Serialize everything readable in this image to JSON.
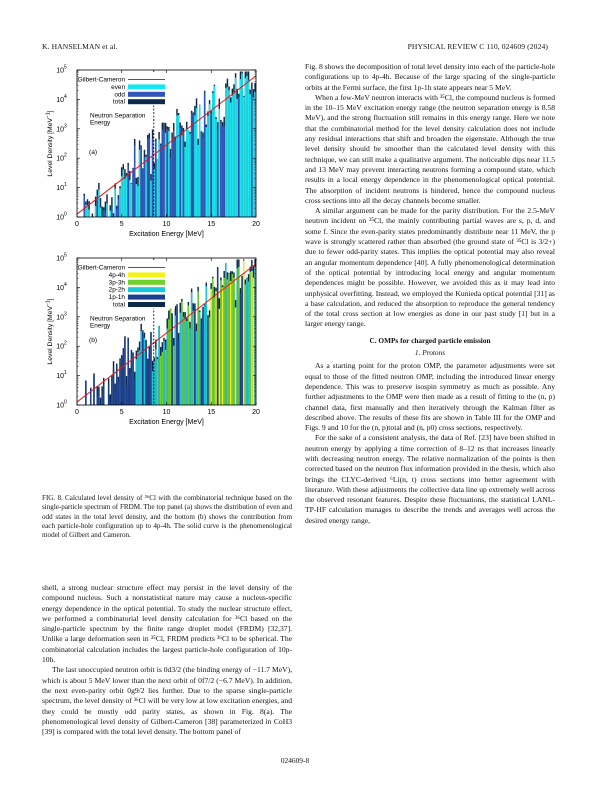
{
  "header": {
    "left": "K. HANSELMAN et al.",
    "right": "PHYSICAL REVIEW C 110, 024609 (2024)"
  },
  "figure": {
    "panel_a": {
      "label": "(a)",
      "legend": [
        "Gilbert-Cameron",
        "even",
        "odd",
        "total"
      ],
      "legend_colors": [
        "#e41a1c",
        "#18e6f0",
        "#2f55b8",
        "#0c2a4a"
      ],
      "annotation": [
        "Neutron Separation",
        "Energy"
      ]
    },
    "panel_b": {
      "label": "(b)",
      "legend": [
        "Gilbert-Cameron",
        "4p-4h",
        "3p-3h",
        "2p-2h",
        "1p-1h",
        "total"
      ],
      "legend_colors": [
        "#e41a1c",
        "#f2f21a",
        "#6fd12c",
        "#18c7d8",
        "#1b3f8f",
        "#0c2a4a"
      ],
      "annotation": [
        "Neutron Separation",
        "Energy"
      ]
    },
    "xlabel": "Excitation Energy [MeV]",
    "ylabel": "Level Density [MeV",
    "ylabel_sup": "−1",
    "ylabel_end": "]",
    "xticks": [
      "0",
      "5",
      "10",
      "15",
      "20"
    ],
    "yticks": [
      "10",
      "10",
      "10",
      "10",
      "10",
      "10"
    ],
    "ytick_exps": [
      "0",
      "1",
      "2",
      "3",
      "4",
      "5"
    ]
  },
  "chart_data": [
    {
      "type": "bar",
      "title": "(a)",
      "xlabel": "Excitation Energy [MeV]",
      "ylabel": "Level Density [MeV−1]",
      "xlim": [
        0,
        20
      ],
      "ylim_log10": [
        0,
        5
      ],
      "yscale": "log",
      "series": [
        {
          "name": "Gilbert-Cameron",
          "type": "line",
          "x": [
            0,
            20
          ],
          "log10_y": [
            0.1,
            4.8
          ]
        },
        {
          "name": "total",
          "type": "bar"
        },
        {
          "name": "even",
          "type": "bar"
        },
        {
          "name": "odd",
          "type": "bar"
        }
      ],
      "annotation": "Neutron Separation Energy",
      "legend": "top-left"
    },
    {
      "type": "bar",
      "title": "(b)",
      "xlabel": "Excitation Energy [MeV]",
      "ylabel": "Level Density [MeV−1]",
      "xlim": [
        0,
        20
      ],
      "ylim_log10": [
        0,
        5
      ],
      "yscale": "log",
      "series": [
        {
          "name": "Gilbert-Cameron",
          "type": "line",
          "x": [
            0,
            20
          ],
          "log10_y": [
            0.1,
            4.8
          ]
        },
        {
          "name": "4p-4h",
          "type": "bar"
        },
        {
          "name": "3p-3h",
          "type": "bar"
        },
        {
          "name": "2p-2h",
          "type": "bar"
        },
        {
          "name": "1p-1h",
          "type": "bar"
        },
        {
          "name": "total",
          "type": "bar"
        }
      ],
      "annotation": "Neutron Separation Energy",
      "legend": "top-left"
    }
  ],
  "caption": "FIG. 8. Calculated level density of ³⁶Cl with the combinatorial technique based on the single-particle spectrum of FRDM. The top panel (a) shows the distribution of even and odd states in the total level density, and the bottom (b) shows the contribution from each particle-hole configuration up to 4p-4h. The solid curve is the phenomenological model of Gilbert and Cameron.",
  "left_paragraphs": [
    "shell, a strong nuclear structure effect may persist in the level density of the compound nucleus. Such a nonstatistical nature may cause a nucleus-specific energy dependence in the optical potential. To study the nuclear structure effect, we performed a combinatorial level density calculation for ³⁶Cl based on the single-particle spectrum by the finite range droplet model (FRDM) [32,37]. Unlike a large deformation seen in ³⁵Cl, FRDM predicts ³⁶Cl to be spherical. The combinatorial calculation includes the largest particle-hole configuration of 10p-10h.",
    "The last unoccupied neutron orbit is 0d3/2 (the binding energy of −11.7 MeV), which is about 5 MeV lower than the next orbit of 0f7/2 (−6.7 MeV). In addition, the next even-parity orbit 0g9/2 lies further. Due to the sparse single-particle spectrum, the level density of ³⁶Cl will be very low at low excitation energies, and they could be mostly odd parity states, as shown in Fig. 8(a). The phenomenological level density of Gilbert-Cameron [38] parameterized in CoH3 [39] is compared with the total level density. The bottom panel of"
  ],
  "right_paragraphs": [
    "Fig. 8 shows the decomposition of total level density into each of the particle-hole configurations up to 4p-4h. Because of the large spacing of the single-particle orbits at the Fermi surface, the first 1p-1h state appears near 5 MeV.",
    "When a few-MeV neutron interacts with ³⁵Cl, the compound nucleus is formed in the 10–15 MeV excitation energy range (the neutron separation energy is 8.58 MeV), and the strong fluctuation still remains in this energy range. Here we note that the combinatorial method for the level density calculation does not include any residual interactions that shift and broaden the eigenstate. Although the true level density should be smoother than the calculated level density with this technique, we can still make a qualitative argument. The noticeable dips near 11.5 and 13 MeV may prevent interacting neutrons forming a compound state, which results in a local energy dependence in the phenomenological optical potential. The absorption of incident neutrons is hindered, hence the compound nucleus cross sections into all the decay channels become smaller.",
    "A similar argument can be made for the parity distribution. For the 2.5-MeV neutron incident on ³⁵Cl, the mainly contributing partial waves are s, p, d, and some f. Since the even-parity states predominantly distribute near 11 MeV, the p wave is strongly scattered rather than absorbed (the ground state of ³⁵Cl is 3/2+) due to fewer odd-parity states. This implies the optical potential may also reveal an angular momentum dependence [40]. A fully phenomenological determination of the optical potential by introducing local energy and angular momentum dependences might be possible. However, we avoided this as it may lead into unphysical overfitting. Instead, we employed the Kunieda optical potential [31] as a base calculation, and reduced the absorption to reproduce the general tendency of the total cross section at low energies as done in our past study [1] but in a larger energy range."
  ],
  "section_heading": "C. OMPs for charged particle emission",
  "subsection_heading": "1. Protons",
  "right_paragraphs_2": [
    "As a starting point for the proton OMP, the parameter adjustments were set equal to those of the fitted neutron OMP, including the introduced linear energy dependence. This was to preserve isospin symmetry as much as possible. Any further adjustments to the OMP were then made as a result of fitting to the (n, p) channel data, first manually and then iteratively through the Kalman filter as described above. The results of these fits are shown in Table III for the OMP and Figs. 9 and 10 for the (n, p)total and (n, p0) cross sections, respectively.",
    "For the sake of a consistent analysis, the data of Ref. [23] have been shifted in neutron energy by applying a time correction of 8–12 ns that increases linearly with decreasing neutron energy. The relative normalization of the points is then corrected based on the neutron flux information provided in the thesis, which also brings the CLYC-derived ⁶Li(n, t) cross sections into better agreement with literature. With these adjustments the collective data line up extremely well across the observed resonant features. Despite these fluctuations, the statistical LANL-TP-HF calculation manages to describe the trends and averages well across the desired energy range,"
  ],
  "footer": "024609-8"
}
